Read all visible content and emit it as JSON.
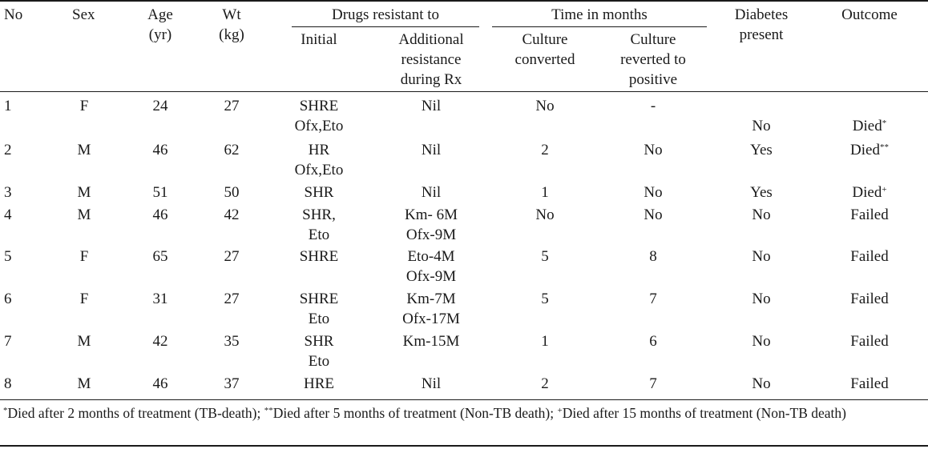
{
  "headers": {
    "no": "No",
    "sex": "Sex",
    "age": [
      "Age",
      "(yr)"
    ],
    "wt": [
      "Wt",
      "(kg)"
    ],
    "drugs_group": "Drugs resistant to",
    "initial": "Initial",
    "additional": [
      "Additional",
      "resistance",
      "during Rx"
    ],
    "time_group": "Time in months",
    "culture_converted": [
      "Culture",
      "converted"
    ],
    "culture_reverted": [
      "Culture",
      "reverted to",
      "positive"
    ],
    "diabetes": [
      "Diabetes",
      "present"
    ],
    "outcome": "Outcome"
  },
  "rows": [
    {
      "no": "1",
      "sex": "F",
      "age": "24",
      "wt": "27",
      "initial": [
        "SHRE",
        "Ofx,Eto"
      ],
      "additional": [
        "Nil"
      ],
      "converted": "No",
      "reverted": "-",
      "diabetes": "No",
      "outcome": "Died",
      "mark": "*"
    },
    {
      "no": "2",
      "sex": "M",
      "age": "46",
      "wt": "62",
      "initial": [
        "HR",
        "Ofx,Eto"
      ],
      "additional": [
        "Nil"
      ],
      "converted": "2",
      "reverted": "No",
      "diabetes": "Yes",
      "outcome": "Died",
      "mark": "**"
    },
    {
      "no": "3",
      "sex": "M",
      "age": "51",
      "wt": "50",
      "initial": [
        "SHR"
      ],
      "additional": [
        "Nil"
      ],
      "converted": "1",
      "reverted": "No",
      "diabetes": "Yes",
      "outcome": "Died",
      "mark": "+"
    },
    {
      "no": "4",
      "sex": "M",
      "age": "46",
      "wt": "42",
      "initial": [
        "SHR,",
        "Eto"
      ],
      "additional": [
        "Km- 6M",
        "Ofx-9M"
      ],
      "converted": "No",
      "reverted": "No",
      "diabetes": "No",
      "outcome": "Failed",
      "mark": ""
    },
    {
      "no": "5",
      "sex": "F",
      "age": "65",
      "wt": "27",
      "initial": [
        "SHRE"
      ],
      "additional": [
        "Eto-4M",
        "Ofx-9M"
      ],
      "converted": "5",
      "reverted": "8",
      "diabetes": "No",
      "outcome": "Failed",
      "mark": ""
    },
    {
      "no": "6",
      "sex": "F",
      "age": "31",
      "wt": "27",
      "initial": [
        "SHRE",
        "Eto"
      ],
      "additional": [
        "Km-7M",
        "Ofx-17M"
      ],
      "converted": "5",
      "reverted": "7",
      "diabetes": "No",
      "outcome": "Failed",
      "mark": ""
    },
    {
      "no": "7",
      "sex": "M",
      "age": "42",
      "wt": "35",
      "initial": [
        "SHR",
        "Eto"
      ],
      "additional": [
        "Km-15M"
      ],
      "converted": "1",
      "reverted": "6",
      "diabetes": "No",
      "outcome": "Failed",
      "mark": ""
    },
    {
      "no": "8",
      "sex": "M",
      "age": "46",
      "wt": "37",
      "initial": [
        "HRE"
      ],
      "additional": [
        "Nil"
      ],
      "converted": "2",
      "reverted": "7",
      "diabetes": "No",
      "outcome": "Failed",
      "mark": ""
    }
  ],
  "footnote": {
    "m1": "*",
    "t1": "Died after 2 months of treatment (TB-death); ",
    "m2": "**",
    "t2": "Died after 5 months of treatment (Non-TB death); ",
    "m3": "+",
    "t3": "Died after 15 months of treatment (Non-TB death)"
  }
}
